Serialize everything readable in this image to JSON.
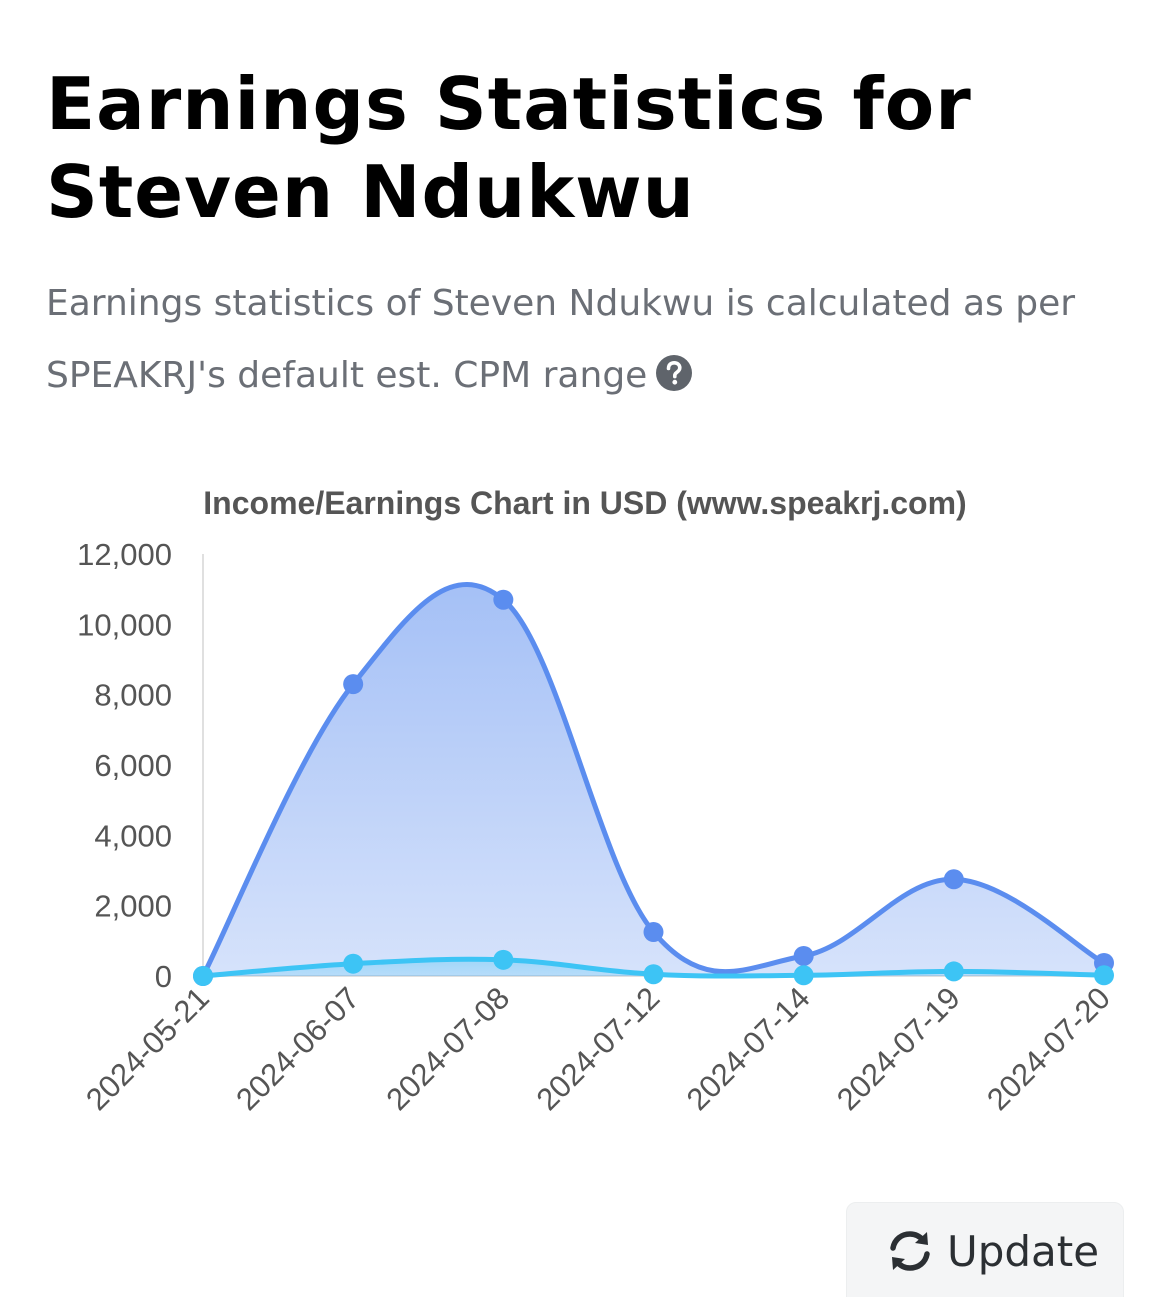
{
  "header": {
    "title": "Earnings Statistics for Steven Ndukwu",
    "subtitle": "Earnings statistics of Steven Ndukwu is calculated as per SPEAKRJ's default est. CPM range",
    "help_icon": "question-circle-icon"
  },
  "update_button": {
    "label": "Update",
    "icon": "refresh-icon"
  },
  "colors": {
    "series_high": "#5b8def",
    "series_low": "#3dc4f5",
    "title_text": "#000000",
    "subtitle_text": "#6b6f76",
    "axis_text": "#555555"
  },
  "chart_data": {
    "type": "area",
    "title": "Income/Earnings Chart in USD (www.speakrj.com)",
    "xlabel": "",
    "ylabel": "",
    "categories": [
      "2024-05-21",
      "2024-06-07",
      "2024-07-08",
      "2024-07-12",
      "2024-07-14",
      "2024-07-19",
      "2024-07-20"
    ],
    "series": [
      {
        "values": [
          0,
          8300,
          10700,
          1250,
          570,
          2750,
          370
        ],
        "color": "#5b8def"
      },
      {
        "values": [
          0,
          350,
          460,
          50,
          20,
          130,
          20
        ],
        "color": "#3dc4f5"
      }
    ],
    "ylim": [
      0,
      12000
    ],
    "yticks": [
      0,
      2000,
      4000,
      6000,
      8000,
      10000,
      12000
    ],
    "ytick_labels": [
      "0",
      "2,000",
      "4,000",
      "6,000",
      "8,000",
      "10,000",
      "12,000"
    ],
    "grid": false,
    "legend": "none",
    "smooth": true
  }
}
